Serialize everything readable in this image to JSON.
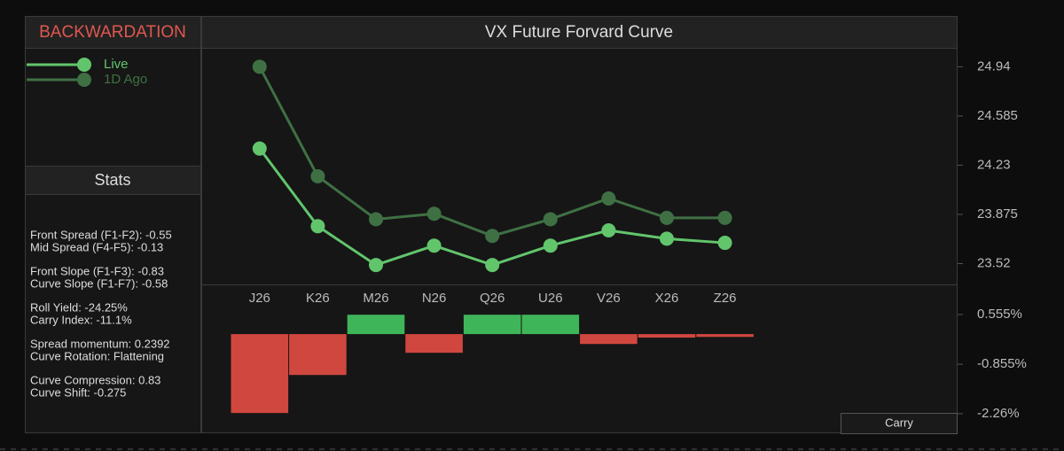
{
  "status": "BACKWARDATION",
  "stats": {
    "title": "Stats",
    "lines": [
      "Front Spread (F1-F2):  -0.55",
      "Mid Spread (F4-F5): -0.13",
      "Front Slope (F1-F3): -0.83",
      "Curve Slope (F1-F7): -0.58",
      "Roll Yield: -24.25%",
      "Carry Index: -11.1%",
      "Spread momentum: 0.2392",
      "Curve Rotation: Flattening",
      "Curve Compression: 0.83",
      "Curve Shift: -0.275"
    ]
  },
  "chart_data": [
    {
      "type": "line",
      "title": "VX Future Forvard Curve",
      "categories": [
        "J26",
        "K26",
        "M26",
        "N26",
        "Q26",
        "U26",
        "V26",
        "X26",
        "Z26"
      ],
      "series": [
        {
          "name": "Live",
          "color": "#62c56c",
          "values": [
            24.35,
            23.79,
            23.51,
            23.65,
            23.51,
            23.65,
            23.76,
            23.7,
            23.67
          ]
        },
        {
          "name": "1D Ago",
          "color": "#3f7044",
          "values": [
            24.94,
            24.15,
            23.84,
            23.88,
            23.72,
            23.84,
            23.99,
            23.85,
            23.85
          ]
        }
      ],
      "ylim": [
        23.37,
        25.07
      ],
      "yticks": [
        24.94,
        24.585,
        24.23,
        23.875,
        23.52
      ]
    },
    {
      "type": "bar",
      "series": [
        {
          "name": "Carry",
          "values": [
            -2.24,
            -1.16,
            0.55,
            -0.53,
            0.55,
            0.55,
            -0.28,
            -0.1,
            -0.08
          ]
        }
      ],
      "positive_color": "#3fb55a",
      "negative_color": "#d0473f",
      "ylim": [
        -2.79,
        1.385
      ],
      "yticks": [
        {
          "value": 0.555,
          "label": "0.555%"
        },
        {
          "value": -0.855,
          "label": "-0.855%"
        },
        {
          "value": -2.26,
          "label": "-2.26%"
        }
      ]
    }
  ]
}
